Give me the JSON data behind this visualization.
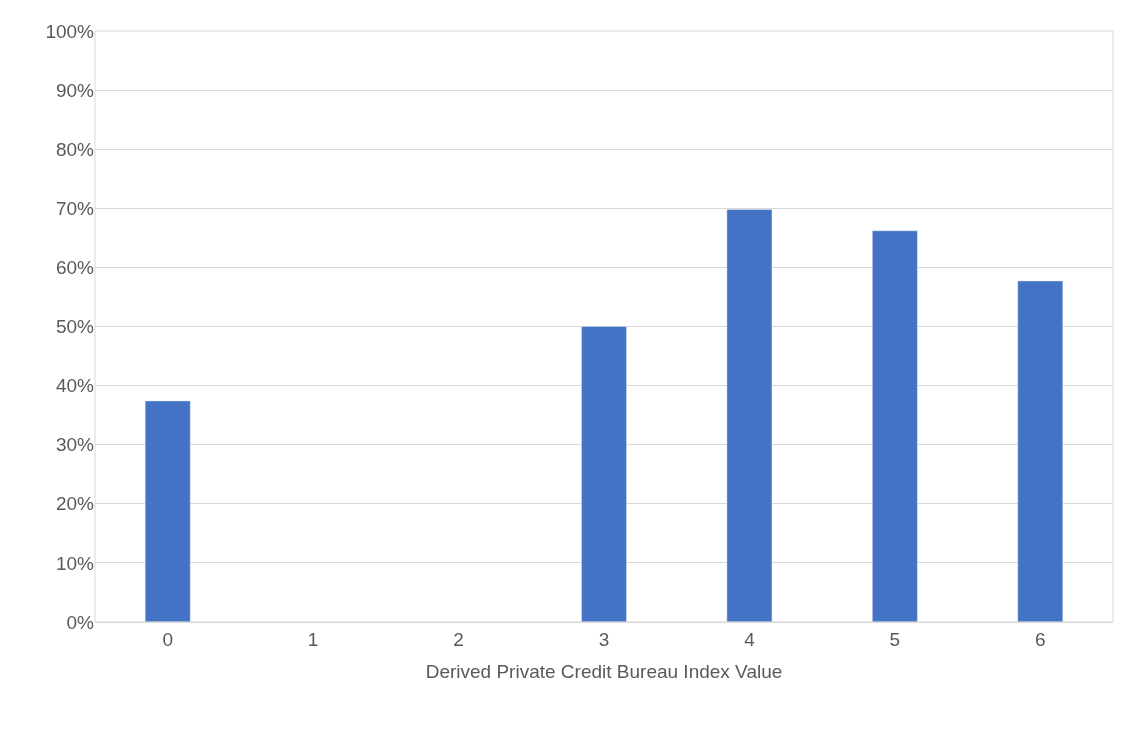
{
  "chart_data": {
    "type": "bar",
    "xlabel": "Derived Private Credit Bureau Index Value",
    "categories": [
      "0",
      "1",
      "2",
      "3",
      "4",
      "5",
      "6"
    ],
    "values": [
      37.4,
      null,
      null,
      50,
      69.8,
      66.2,
      57.7
    ],
    "color": "#4472c4",
    "ylim": [
      0,
      100
    ],
    "yticks": [
      {
        "value": 0,
        "label": "0%"
      },
      {
        "value": 10,
        "label": "10%"
      },
      {
        "value": 20,
        "label": "20%"
      },
      {
        "value": 30,
        "label": "30%"
      },
      {
        "value": 40,
        "label": "40%"
      },
      {
        "value": 50,
        "label": "50%"
      },
      {
        "value": 60,
        "label": "60%"
      },
      {
        "value": 70,
        "label": "70%"
      },
      {
        "value": 80,
        "label": "80%"
      },
      {
        "value": 90,
        "label": "90%"
      },
      {
        "value": 100,
        "label": "100%"
      }
    ],
    "grid": "y"
  }
}
